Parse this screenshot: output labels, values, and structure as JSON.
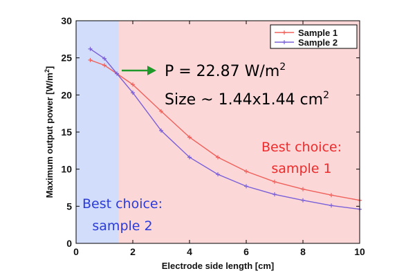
{
  "chart_data": {
    "type": "line",
    "xlabel": "Electrode side length [cm]",
    "ylabel": "Maximum output power [W/m",
    "ylabel_sup": "2",
    "ylabel_end": "]",
    "xlim": [
      0,
      10
    ],
    "ylim": [
      0,
      30
    ],
    "xticks": [
      0,
      2,
      4,
      6,
      8,
      10
    ],
    "yticks": [
      0,
      5,
      10,
      15,
      20,
      25,
      30
    ],
    "grid": false,
    "legend_position": "top-right",
    "series": [
      {
        "name": "Sample 1",
        "color": "#f0605a",
        "x": [
          0.5,
          1,
          1.44,
          2,
          3,
          4,
          5,
          6,
          7,
          8,
          9,
          10
        ],
        "y": [
          24.7,
          24.0,
          22.87,
          21.4,
          17.8,
          14.3,
          11.6,
          9.7,
          8.3,
          7.3,
          6.5,
          5.8
        ]
      },
      {
        "name": "Sample 2",
        "color": "#7a60d8",
        "x": [
          0.5,
          1,
          1.44,
          2,
          3,
          4,
          5,
          6,
          7,
          8,
          9,
          10
        ],
        "y": [
          26.2,
          24.9,
          22.87,
          20.3,
          15.2,
          11.6,
          9.3,
          7.7,
          6.6,
          5.8,
          5.1,
          4.6
        ]
      }
    ],
    "regions": [
      {
        "label": "sample2",
        "x_from": 0,
        "x_to": 1.5,
        "color": "#d2dcfb"
      },
      {
        "label": "sample1",
        "x_from": 1.5,
        "x_to": 10,
        "color": "#fbd7d8"
      }
    ],
    "annotations": {
      "arrow_color": "#1f9a2a",
      "power_line": {
        "main": "P = 22.87 W/m",
        "sup": "2"
      },
      "size_line": {
        "main": "Size ~ 1.44x1.44 cm",
        "sup": "2"
      },
      "best1": {
        "line1": "Best choice:",
        "line2": "sample 1",
        "color": "#ee2b2b"
      },
      "best2": {
        "line1": "Best choice:",
        "line2": "sample 2",
        "color": "#2a3bd9"
      }
    }
  }
}
